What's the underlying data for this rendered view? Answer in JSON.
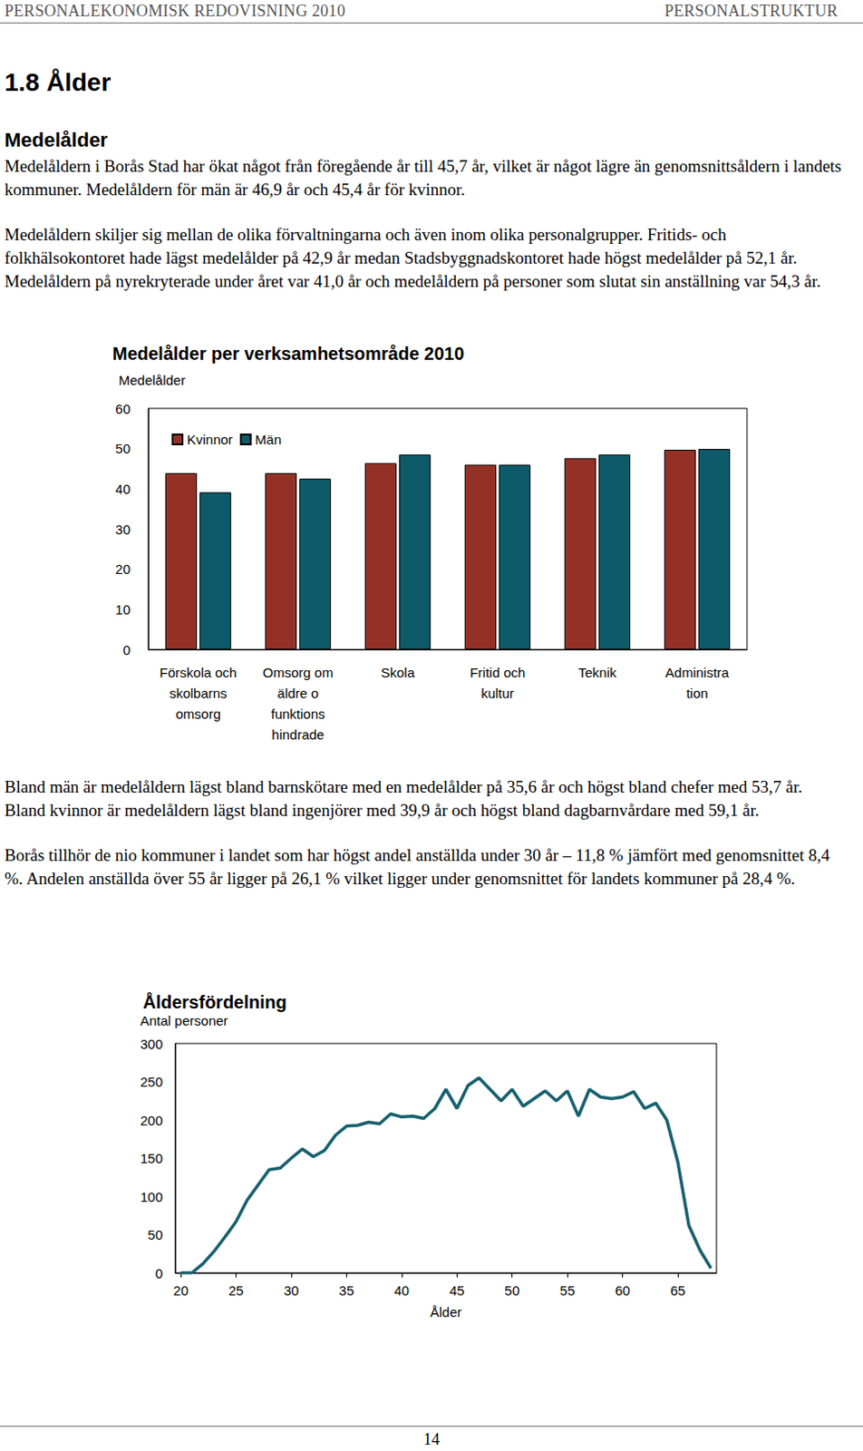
{
  "header": {
    "left": "PERSONALEKONOMISK REDOVISNING 2010",
    "right": "PERSONALSTRUKTUR"
  },
  "heading": "1.8 Ålder",
  "subheading": "Medelålder",
  "paragraphs_before": [
    "Medelåldern i Borås Stad har ökat något från föregående år till 45,7 år, vilket är något lägre än genomsnittsåldern i landets kommuner. Medelåldern för män är 46,9 år och 45,4 år för kvinnor.",
    "Medelåldern skiljer sig mellan de olika förvaltningarna och även inom olika personalgrupper. Fritids- och folkhälsokontoret hade lägst medelålder på 42,9 år medan Stadsbyggnadskontoret hade högst medelålder på 52,1 år. Medelåldern på nyrekryterade under året var 41,0 år och medelåldern på personer som slutat sin anställning var 54,3 år."
  ],
  "paragraphs_after": [
    "Bland män är medelåldern lägst bland barnskötare med en medelålder på 35,6 år och högst bland chefer med 53,7 år. Bland kvinnor är medelåldern lägst bland ingenjörer med 39,9 år och högst bland dagbarnvårdare med 59,1 år.",
    "Borås tillhör de nio kommuner i landet som har högst andel anställda under 30 år – 11,8 % jämfört med genomsnittet 8,4 %. Andelen anställda över 55 år ligger på 26,1 % vilket ligger under genomsnittet för landets kommuner på 28,4 %."
  ],
  "page_number": "14",
  "chart_data": [
    {
      "type": "bar",
      "title": "Medelålder per verksamhetsområde 2010",
      "y_label": "Medelålder",
      "categories": [
        "Förskola och\nskolbarns\nomsorg",
        "Omsorg om\näldre o\nfunktions\nhindrade",
        "Skola",
        "Fritid och\nkultur",
        "Teknik",
        "Administra\ntion"
      ],
      "series": [
        {
          "name": "Kvinnor",
          "color": "#943126",
          "values": [
            43.9,
            43.9,
            46.4,
            46.0,
            47.6,
            49.7
          ]
        },
        {
          "name": "Män",
          "color": "#0d5a69",
          "values": [
            39.1,
            42.5,
            48.5,
            46.0,
            48.5,
            49.9
          ]
        }
      ],
      "ylim": [
        0,
        60
      ],
      "yticks": [
        0,
        10,
        20,
        30,
        40,
        50,
        60
      ],
      "grid": false,
      "legend": "upper left"
    },
    {
      "type": "line",
      "title": "Åldersfördelning",
      "x_label": "Ålder",
      "y_label": "Antal personer",
      "x": [
        20,
        21,
        22,
        23,
        24,
        25,
        26,
        27,
        28,
        29,
        30,
        31,
        32,
        33,
        34,
        35,
        36,
        37,
        38,
        39,
        40,
        41,
        42,
        43,
        44,
        45,
        46,
        47,
        48,
        49,
        50,
        51,
        52,
        53,
        54,
        55,
        56,
        57,
        58,
        59,
        60,
        61,
        62,
        63,
        64,
        65,
        66,
        67,
        68
      ],
      "values": [
        0,
        0,
        12,
        28,
        47,
        67,
        95,
        115,
        135,
        137,
        150,
        162,
        152,
        160,
        180,
        192,
        193,
        197,
        195,
        208,
        204,
        205,
        202,
        215,
        240,
        215,
        245,
        255,
        240,
        225,
        240,
        218,
        228,
        238,
        225,
        238,
        205,
        240,
        230,
        228,
        230,
        237,
        215,
        222,
        200,
        145,
        62,
        30,
        6
      ],
      "color": "#17606f",
      "xlim": [
        19.5,
        68.5
      ],
      "xticks": [
        20,
        25,
        30,
        35,
        40,
        45,
        50,
        55,
        60,
        65
      ],
      "ylim": [
        0,
        300
      ],
      "yticks": [
        0,
        50,
        100,
        150,
        200,
        250,
        300
      ],
      "grid": false
    }
  ]
}
